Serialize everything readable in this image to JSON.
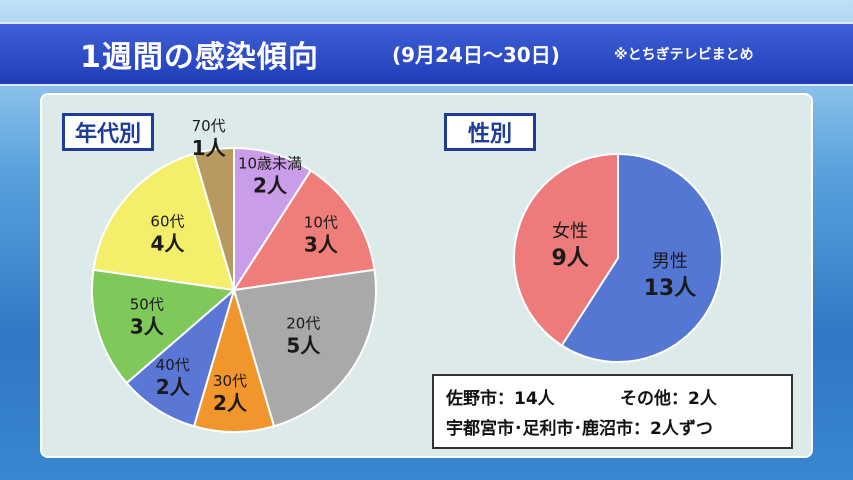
{
  "title": {
    "main": "1週間の感染傾向",
    "date_range": "(9月24日～30日)",
    "note": "※とちぎテレビまとめ"
  },
  "colors": {
    "title_bg": "#2446c4",
    "panel_bg": "#dcebea",
    "label_border": "#1f3c99"
  },
  "chart_data": [
    {
      "type": "pie",
      "title": "年代別",
      "start": "top",
      "direction": "clockwise",
      "slices": [
        {
          "category": "10歳未満",
          "value": 2,
          "label": "2人",
          "color": "#c99de8"
        },
        {
          "category": "10代",
          "value": 3,
          "label": "3人",
          "color": "#ef7e7b"
        },
        {
          "category": "20代",
          "value": 5,
          "label": "5人",
          "color": "#a9a9a9"
        },
        {
          "category": "30代",
          "value": 2,
          "label": "2人",
          "color": "#f0962c"
        },
        {
          "category": "40代",
          "value": 2,
          "label": "2人",
          "color": "#5b77d6"
        },
        {
          "category": "50代",
          "value": 3,
          "label": "3人",
          "color": "#7fc85a"
        },
        {
          "category": "60代",
          "value": 4,
          "label": "4人",
          "color": "#f3ef6a"
        },
        {
          "category": "70代",
          "value": 1,
          "label": "1人",
          "color": "#b89a60"
        }
      ]
    },
    {
      "type": "pie",
      "title": "性別",
      "start": "top",
      "direction": "clockwise",
      "slices": [
        {
          "category": "男性",
          "value": 13,
          "label": "13人",
          "color": "#5577d4"
        },
        {
          "category": "女性",
          "value": 9,
          "label": "9人",
          "color": "#ee7b7b"
        }
      ]
    }
  ],
  "summary": {
    "line1_a": "佐野市：14人",
    "line1_b": "その他：2人",
    "line2": "宇都宮市･足利市･鹿沼市：2人ずつ"
  }
}
